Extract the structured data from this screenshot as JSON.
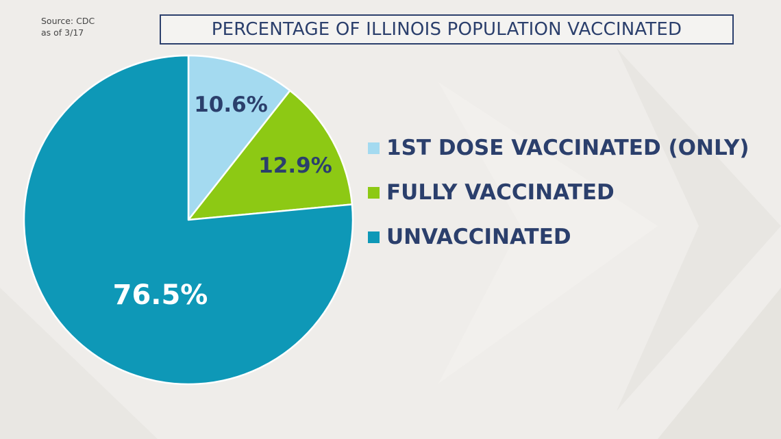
{
  "source": {
    "line1": "Source: CDC",
    "line2": "as of 3/17"
  },
  "colors": {
    "first_dose": "#a4daf0",
    "fully": "#8dc914",
    "unvaccinated": "#0e98b7",
    "text_dark": "#2b3f6c",
    "text_light": "#ffffff",
    "background": "#efedea"
  },
  "chart_data": {
    "type": "pie",
    "title": "PERCENTAGE OF ILLINOIS POPULATION VACCINATED",
    "legend_position": "right",
    "start": "top",
    "direction": "clockwise",
    "slices": [
      {
        "label": "1ST DOSE VACCINATED (ONLY)",
        "value": 10.6,
        "display": "10.6%",
        "color": "#a4daf0",
        "label_color": "#2b3f6c"
      },
      {
        "label": "FULLY VACCINATED",
        "value": 12.9,
        "display": "12.9%",
        "color": "#8dc914",
        "label_color": "#2b3f6c"
      },
      {
        "label": "UNVACCINATED",
        "value": 76.5,
        "display": "76.5%",
        "color": "#0e98b7",
        "label_color": "#ffffff"
      }
    ]
  }
}
